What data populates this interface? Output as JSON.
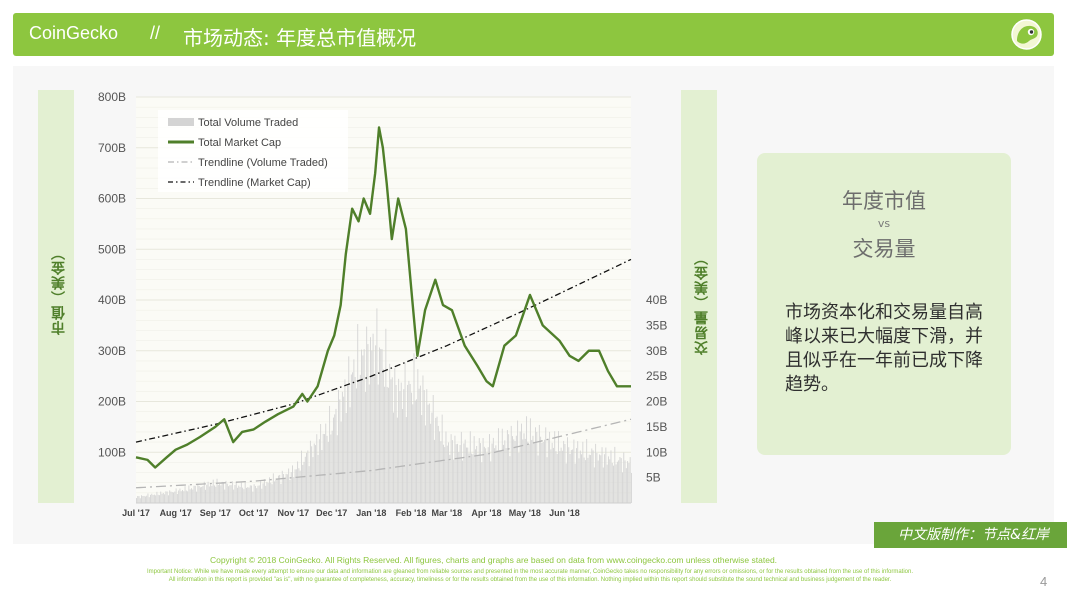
{
  "header": {
    "brand": "CoinGecko",
    "separator": "//",
    "title": "市场动态: 年度总市值概况"
  },
  "logo_icon": "gecko-logo-icon",
  "colors": {
    "accent": "#8dc63f",
    "market_cap_line": "#4f7f2a",
    "volume_bars": "#d4d4d4",
    "panel_tint": "#e3f0d2"
  },
  "axis_titles": {
    "left": "市值（美金）",
    "right": "交易量（美金）"
  },
  "chart_data": {
    "type": "line",
    "x_range": [
      "2017-07-01",
      "2018-07-23"
    ],
    "x_ticks": [
      "Jul '17",
      "Aug '17",
      "Sep '17",
      "Oct '17",
      "Nov '17",
      "Dec '17",
      "Jan '18",
      "Feb '18",
      "Mar '18",
      "Apr '18",
      "May '18",
      "Jun '18"
    ],
    "y_left": {
      "ticks": [
        "100B",
        "200B",
        "300B",
        "400B",
        "500B",
        "600B",
        "700B",
        "800B"
      ],
      "ylim": [
        0,
        800
      ],
      "unit": "B"
    },
    "y_right": {
      "ticks": [
        "5B",
        "10B",
        "15B",
        "20B",
        "25B",
        "30B",
        "35B",
        "40B"
      ],
      "ylim": [
        0,
        80
      ],
      "unit": "B"
    },
    "grid": true,
    "legend": {
      "placement": "top-left",
      "entries": [
        "Total Volume Traded",
        "Total Market Cap",
        "Trendline (Volume Traded)",
        "Trendline (Market Cap)"
      ]
    },
    "series": [
      {
        "name": "Total Market Cap",
        "axis": "left",
        "x": [
          "2017-07-01",
          "2017-07-10",
          "2017-07-16",
          "2017-07-25",
          "2017-08-01",
          "2017-08-10",
          "2017-08-20",
          "2017-09-01",
          "2017-09-08",
          "2017-09-15",
          "2017-09-22",
          "2017-10-01",
          "2017-10-10",
          "2017-10-20",
          "2017-11-01",
          "2017-11-08",
          "2017-11-12",
          "2017-11-20",
          "2017-11-28",
          "2017-12-03",
          "2017-12-08",
          "2017-12-12",
          "2017-12-17",
          "2017-12-22",
          "2017-12-26",
          "2017-12-31",
          "2018-01-04",
          "2018-01-07",
          "2018-01-10",
          "2018-01-13",
          "2018-01-17",
          "2018-01-22",
          "2018-01-28",
          "2018-02-02",
          "2018-02-06",
          "2018-02-12",
          "2018-02-20",
          "2018-02-26",
          "2018-03-05",
          "2018-03-15",
          "2018-03-25",
          "2018-04-01",
          "2018-04-06",
          "2018-04-15",
          "2018-04-24",
          "2018-05-05",
          "2018-05-15",
          "2018-05-28",
          "2018-06-05",
          "2018-06-12",
          "2018-06-20",
          "2018-06-28",
          "2018-07-05",
          "2018-07-12",
          "2018-07-18",
          "2018-07-23"
        ],
        "y": [
          90,
          85,
          70,
          90,
          105,
          115,
          130,
          150,
          165,
          120,
          140,
          145,
          160,
          175,
          190,
          215,
          200,
          230,
          300,
          330,
          390,
          490,
          580,
          555,
          600,
          570,
          650,
          740,
          700,
          630,
          520,
          600,
          540,
          400,
          290,
          380,
          440,
          390,
          380,
          310,
          270,
          240,
          230,
          310,
          330,
          410,
          350,
          320,
          290,
          280,
          300,
          300,
          260,
          230,
          230,
          230
        ]
      },
      {
        "name": "Total Volume Traded",
        "axis": "right",
        "x": [
          "2017-07-01",
          "2017-08-01",
          "2017-09-01",
          "2017-10-01",
          "2017-11-01",
          "2017-12-01",
          "2017-12-20",
          "2018-01-05",
          "2018-01-20",
          "2018-02-06",
          "2018-03-01",
          "2018-04-01",
          "2018-05-01",
          "2018-06-01",
          "2018-07-01",
          "2018-07-23"
        ],
        "y": [
          1.5,
          3,
          5,
          4,
          8,
          20,
          35,
          40,
          28,
          30,
          15,
          14,
          18,
          14,
          12,
          10
        ]
      },
      {
        "name": "Trendline (Volume Traded)",
        "axis": "right",
        "x": [
          "2017-07-01",
          "2017-10-01",
          "2018-01-01",
          "2018-04-01",
          "2018-07-23"
        ],
        "y": [
          3,
          4.3,
          6.4,
          9.6,
          16.5
        ]
      },
      {
        "name": "Trendline (Market Cap)",
        "axis": "left",
        "x": [
          "2017-07-01",
          "2017-09-01",
          "2017-11-01",
          "2018-01-01",
          "2018-03-01",
          "2018-05-01",
          "2018-07-23"
        ],
        "y": [
          120,
          155,
          195,
          250,
          310,
          380,
          480
        ]
      }
    ]
  },
  "infobox": {
    "heading1": "年度市值",
    "vs": "vs",
    "heading2": "交易量",
    "body": "市场资本化和交易量自高峰以来已大幅度下滑，并且似乎在一年前已成下降趋势。"
  },
  "badge": "中文版制作：节点&红岸",
  "footer": {
    "copyright": "Copyright © 2018 CoinGecko. All Rights Reserved. All figures, charts and graphs are based on data from www.coingecko.com unless otherwise stated.",
    "notice1": "Important Notice: While we have made every attempt to ensure our data and information are gleaned from reliable sources and presented in the most accurate manner, CoinGecko takes no responsibility for any errors or omissions, or for the results obtained from the use of this information.",
    "notice2": "All information in this report is provided \"as is\", with no guarantee of completeness, accuracy, timeliness or for the results obtained from the use of this information. Nothing implied within this report should substitute the sound technical and business judgement of the reader.",
    "page_number": "4"
  }
}
